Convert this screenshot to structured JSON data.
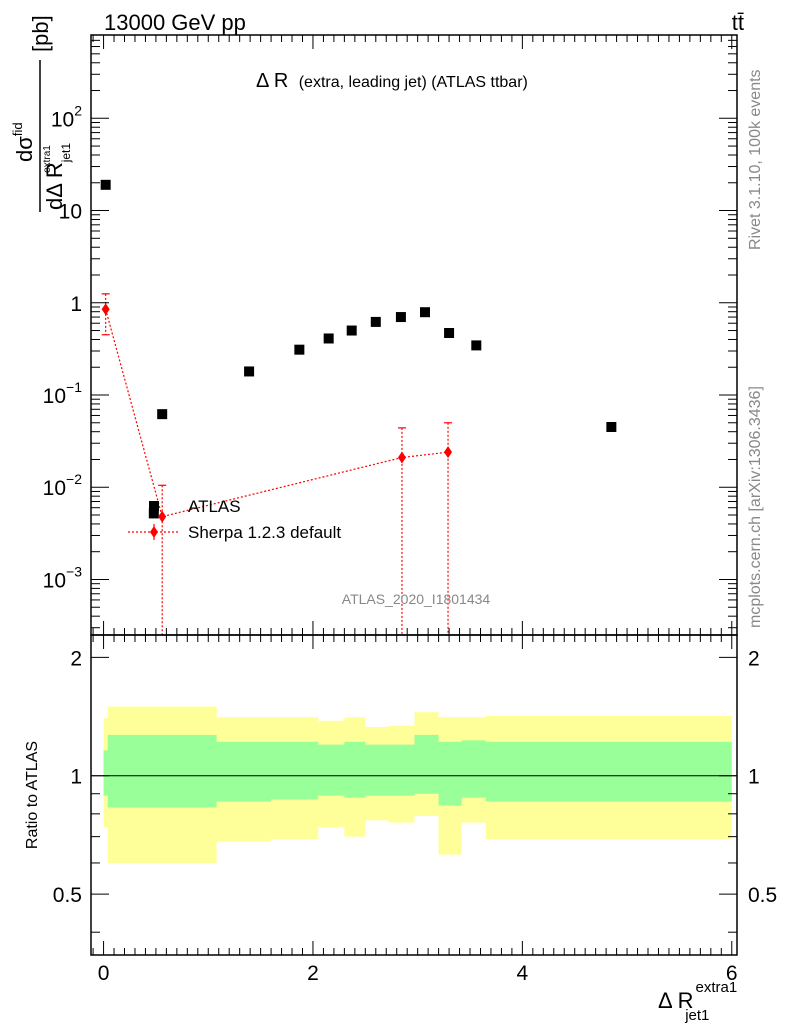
{
  "header": {
    "left": "13000 GeV pp",
    "right": "tt̄"
  },
  "side_labels": {
    "rivet": "Rivet 3.1.10,  100k events",
    "mcplots": "mcplots.cern.ch [arXiv:1306.3436]"
  },
  "chart_data": [
    {
      "type": "scatter",
      "title_main": "Δ R",
      "title_detail": "(extra, leading jet) (ATLAS ttbar)",
      "watermark": "ATLAS_2020_I1801434",
      "ylabel": {
        "num": "dσ",
        "num_sup": "fid",
        "den": "dΔ R",
        "den_sup": "extra1",
        "den_sub": "jet1",
        "unit": "[pb]"
      },
      "yscale": "log",
      "xlim": [
        -0.12,
        6.05
      ],
      "ylim": [
        0.00025,
        800
      ],
      "ytick_labels": [
        {
          "value": 0.001,
          "mant": "10",
          "exp": "−3"
        },
        {
          "value": 0.01,
          "mant": "10",
          "exp": "−2"
        },
        {
          "value": 0.1,
          "mant": "10",
          "exp": "−1"
        },
        {
          "value": 1,
          "mant": "1",
          "exp": ""
        },
        {
          "value": 10,
          "mant": "10",
          "exp": ""
        },
        {
          "value": 100,
          "mant": "10",
          "exp": "2"
        }
      ],
      "legend": {
        "position": "lower-left",
        "entries": [
          "ATLAS",
          "Sherpa 1.2.3 default"
        ]
      },
      "series": [
        {
          "name": "ATLAS",
          "color": "#000000",
          "marker": "square",
          "x": [
            0.02,
            0.48,
            0.56,
            1.39,
            1.87,
            2.15,
            2.37,
            2.6,
            2.84,
            3.07,
            3.3,
            3.56,
            4.85
          ],
          "y": [
            19.0,
            0.0052,
            0.062,
            0.18,
            0.31,
            0.41,
            0.5,
            0.62,
            0.7,
            0.79,
            0.47,
            0.345,
            0.045
          ]
        },
        {
          "name": "Sherpa 1.2.3 default",
          "color": "#ff0000",
          "marker": "diamond",
          "x": [
            0.02,
            0.56,
            2.85,
            3.29
          ],
          "y": [
            0.85,
            0.0048,
            0.021,
            0.024
          ],
          "err_up": [
            1.25,
            0.0105,
            0.044,
            0.05
          ],
          "err_down": [
            0.45,
            1e-05,
            1e-05,
            1e-05
          ]
        }
      ]
    },
    {
      "type": "area",
      "ylabel": "Ratio to ATLAS",
      "xlabel_main": "Δ R",
      "xlabel_sup": "extra1",
      "xlabel_sub": "jet1",
      "xlim": [
        -0.12,
        6.05
      ],
      "ylim": [
        0.35,
        2.28
      ],
      "xticks": [
        0,
        2,
        4,
        6
      ],
      "xtick_labels": [
        "0",
        "2",
        "4",
        "6"
      ],
      "yticks": [
        0.5,
        1,
        2
      ],
      "ytick_labels": [
        "0.5",
        "1",
        "2"
      ],
      "reference_line": 1,
      "bands": {
        "colors": {
          "outer": "#ffff99",
          "inner": "#99ff99"
        },
        "edges": [
          0.0,
          0.04,
          1.08,
          1.6,
          2.05,
          2.3,
          2.5,
          2.72,
          2.97,
          3.2,
          3.42,
          3.65,
          6.0
        ],
        "outer_lo": [
          0.74,
          0.6,
          0.68,
          0.69,
          0.74,
          0.7,
          0.77,
          0.76,
          0.79,
          0.63,
          0.76,
          0.69
        ],
        "outer_hi": [
          1.4,
          1.5,
          1.41,
          1.41,
          1.38,
          1.41,
          1.33,
          1.34,
          1.45,
          1.41,
          1.41,
          1.42
        ],
        "inner_lo": [
          0.89,
          0.83,
          0.86,
          0.87,
          0.89,
          0.88,
          0.89,
          0.89,
          0.9,
          0.84,
          0.88,
          0.86
        ],
        "inner_hi": [
          1.16,
          1.27,
          1.22,
          1.22,
          1.2,
          1.22,
          1.2,
          1.2,
          1.27,
          1.22,
          1.23,
          1.22
        ]
      }
    }
  ]
}
